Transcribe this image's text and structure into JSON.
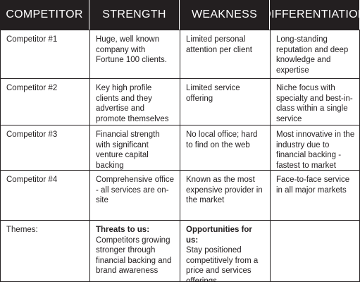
{
  "header": {
    "competitor": "COMPETITOR",
    "strength": "STRENGTH",
    "weakness": "WEAKNESS",
    "differentiation": "DIFFERENTIATION"
  },
  "rows": [
    {
      "competitor": "Competitor #1",
      "strength": "Huge, well known company with Fortune 100 clients.",
      "weakness": "Limited personal attention per client",
      "differentiation": "Long-standing reputation and deep knowledge and expertise"
    },
    {
      "competitor": "Competitor #2",
      "strength": "Key high profile clients and they advertise and promote themselves well",
      "weakness": "Limited service offering",
      "differentiation": "Niche focus with specialty and best-in-class within a single service"
    },
    {
      "competitor": "Competitor #3",
      "strength": "Financial strength with significant venture capital backing",
      "weakness": "No local office; hard to find on the web",
      "differentiation": "Most innovative in the industry due to financial backing - fastest to market"
    },
    {
      "competitor": "Competitor #4",
      "strength": "Comprehensive office - all services are on-site",
      "weakness": "Known as the most expensive provider in the market",
      "differentiation": "Face-to-face service in all major markets"
    }
  ],
  "themes": {
    "label": "Themes:",
    "threats_heading": "Threats to us:",
    "threats_text": "Competitors growing stronger through financial backing and brand awareness",
    "opportunities_heading": "Opportunities for us:",
    "opportunities_text": "Stay positioned competitively from a price and services offerings",
    "differentiation": ""
  }
}
